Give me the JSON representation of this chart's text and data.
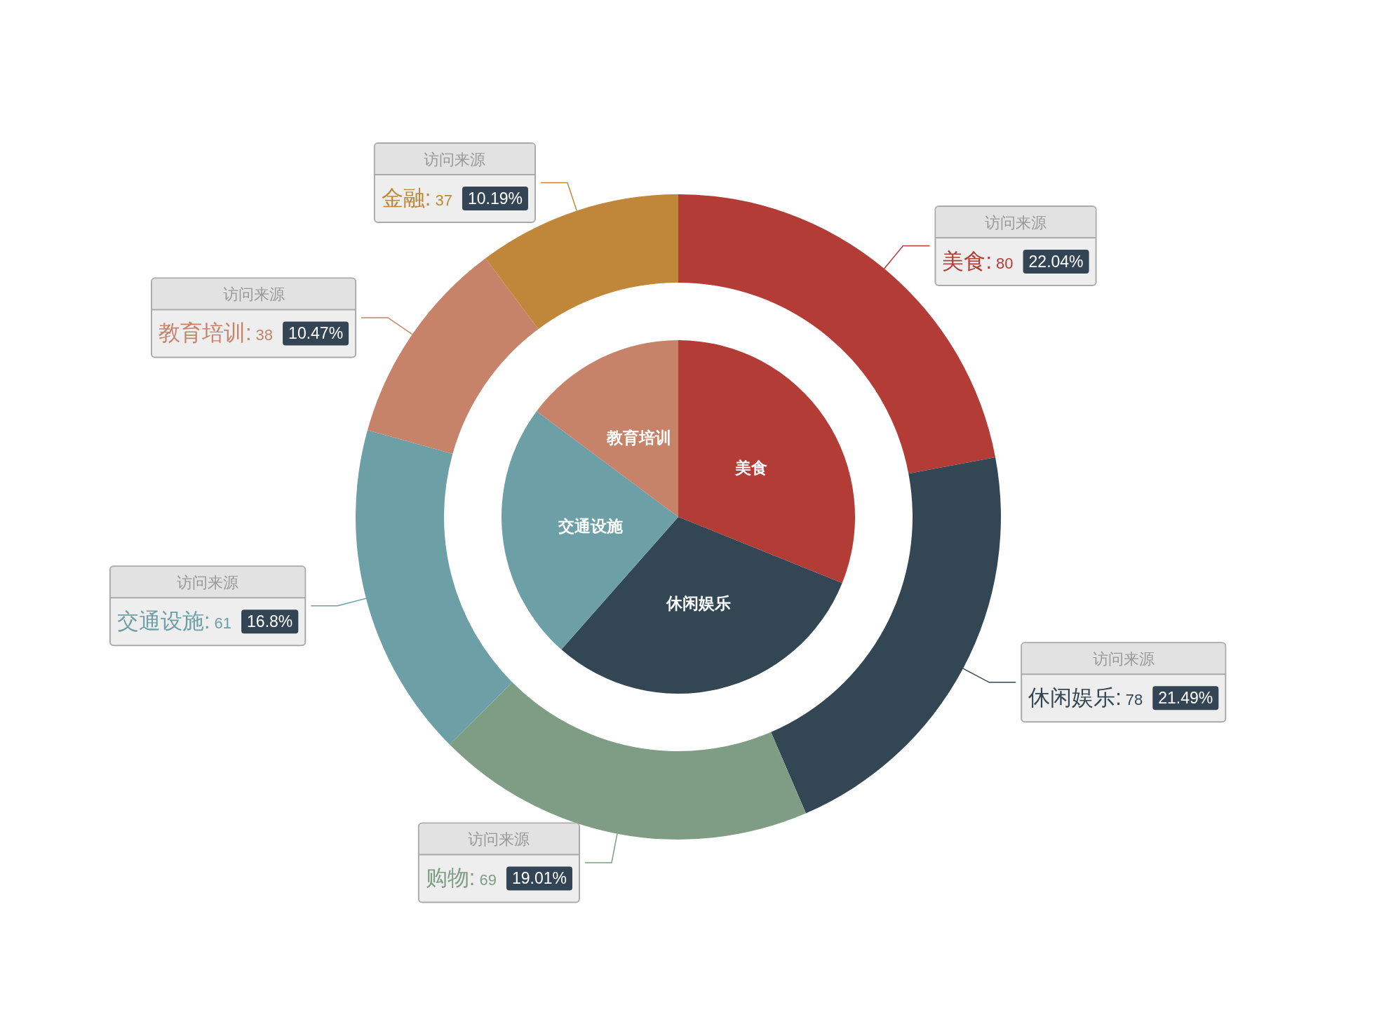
{
  "chart_data": [
    {
      "type": "pie",
      "categories": [
        "美食",
        "休闲娱乐",
        "交通设施",
        "教育培训"
      ],
      "values": [
        31.1,
        30.4,
        23.7,
        14.8
      ],
      "colors": [
        "#b33c37",
        "#334654",
        "#6d9fa7",
        "#c7826a"
      ]
    },
    {
      "type": "donut",
      "categories": [
        "美食",
        "休闲娱乐",
        "购物",
        "交通设施",
        "教育培训",
        "金融"
      ],
      "series": [
        {
          "name": "访问来源",
          "values": [
            80,
            78,
            69,
            61,
            38,
            37
          ],
          "value_labels": [
            ": 80 22.04%",
            ": 78 21.49%",
            ": 69 19.01%",
            ": 61 16.8%",
            ": 38 10.47%",
            ": 37 10.19%"
          ]
        }
      ],
      "colors": [
        "#b33c37",
        "#334654",
        "#7f9d84",
        "#6d9fa7",
        "#c7826a",
        "#c0873a"
      ]
    }
  ]
}
